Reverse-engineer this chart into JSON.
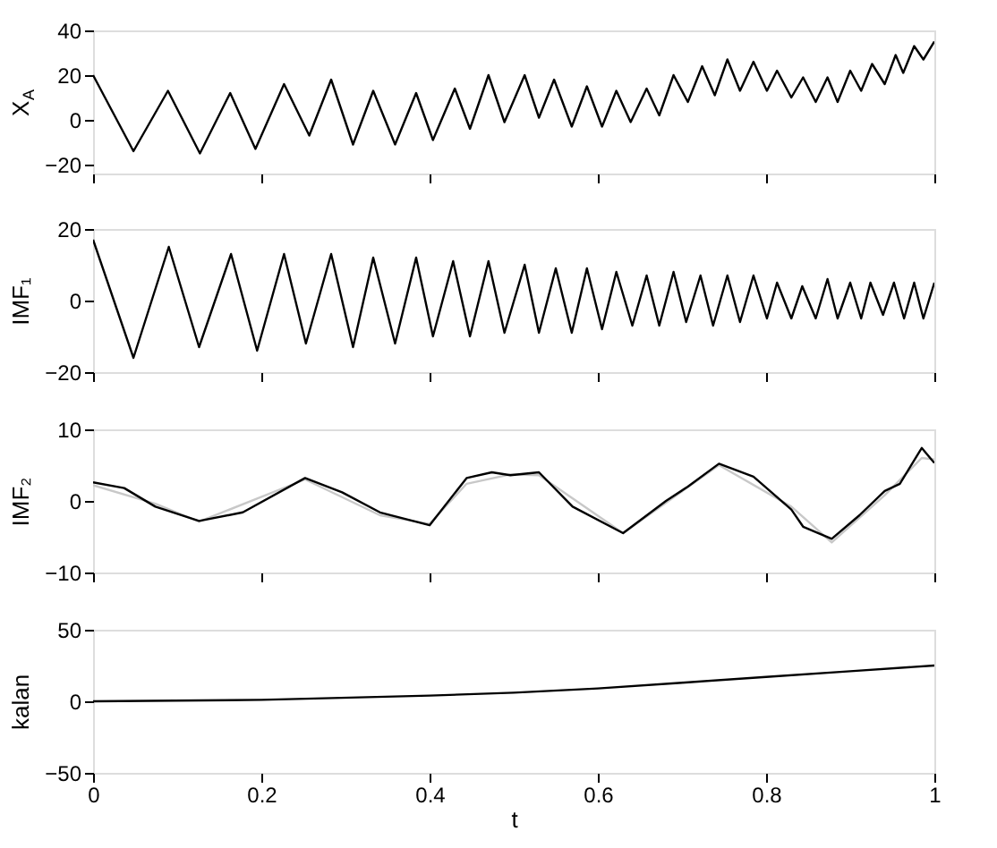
{
  "chart_data": [
    {
      "type": "line",
      "ylabel": "X$_{A}$",
      "xlim": [
        0,
        1
      ],
      "ylim": [
        -24,
        40
      ],
      "yticks": [
        -20,
        0,
        20,
        40
      ],
      "xticks": [
        {
          "value": 0,
          "label": null
        },
        {
          "value": 0.2,
          "label": null
        },
        {
          "value": 0.4,
          "label": null
        },
        {
          "value": 0.6,
          "label": null
        },
        {
          "value": 0.8,
          "label": null
        },
        {
          "value": 1,
          "label": null
        }
      ],
      "tick_labels": "y",
      "grid": false,
      "legend": false,
      "series": [
        {
          "color": "#000000",
          "x": [
            0,
            0.048,
            0.089,
            0.127,
            0.163,
            0.193,
            0.227,
            0.257,
            0.283,
            0.309,
            0.333,
            0.359,
            0.384,
            0.404,
            0.43,
            0.448,
            0.47,
            0.489,
            0.513,
            0.53,
            0.548,
            0.569,
            0.587,
            0.605,
            0.622,
            0.639,
            0.658,
            0.673,
            0.69,
            0.707,
            0.724,
            0.739,
            0.754,
            0.769,
            0.785,
            0.801,
            0.813,
            0.83,
            0.844,
            0.859,
            0.873,
            0.885,
            0.9,
            0.913,
            0.926,
            0.941,
            0.954,
            0.963,
            0.976,
            0.987,
            1
          ],
          "values": [
            20,
            -14,
            13,
            -15,
            12,
            -13,
            16,
            -7,
            18,
            -11,
            13,
            -11,
            12,
            -9,
            14,
            -4,
            20,
            -1,
            20,
            1,
            18,
            -3,
            15,
            -3,
            13,
            -1,
            14,
            2,
            20,
            8,
            24,
            11,
            27,
            13,
            26,
            13,
            22,
            10,
            19,
            8,
            19,
            8,
            22,
            13,
            25,
            16,
            29,
            21,
            33,
            27,
            35
          ]
        }
      ]
    },
    {
      "type": "line",
      "ylabel": "IMF₁",
      "xlim": [
        0,
        1
      ],
      "ylim": [
        -20,
        20
      ],
      "yticks": [
        -20,
        0,
        20
      ],
      "xticks": [
        {
          "value": 0,
          "label": null
        },
        {
          "value": 0.2,
          "label": null
        },
        {
          "value": 0.4,
          "label": null
        },
        {
          "value": 0.6,
          "label": null
        },
        {
          "value": 0.8,
          "label": null
        },
        {
          "value": 1,
          "label": null
        }
      ],
      "tick_labels": "y",
      "grid": false,
      "legend": false,
      "series": [
        {
          "color": "#000000",
          "x": [
            0,
            0.048,
            0.09,
            0.126,
            0.164,
            0.195,
            0.227,
            0.253,
            0.283,
            0.309,
            0.333,
            0.359,
            0.384,
            0.404,
            0.428,
            0.448,
            0.47,
            0.489,
            0.513,
            0.53,
            0.55,
            0.569,
            0.587,
            0.605,
            0.622,
            0.641,
            0.658,
            0.673,
            0.69,
            0.705,
            0.722,
            0.737,
            0.754,
            0.769,
            0.785,
            0.801,
            0.813,
            0.83,
            0.843,
            0.859,
            0.873,
            0.885,
            0.9,
            0.913,
            0.924,
            0.939,
            0.952,
            0.964,
            0.976,
            0.987,
            1
          ],
          "values": [
            17,
            -16,
            15,
            -13,
            13,
            -14,
            13,
            -12,
            13,
            -13,
            12,
            -12,
            12,
            -10,
            11,
            -10,
            11,
            -9,
            10,
            -9,
            9,
            -9,
            9,
            -8,
            8,
            -7,
            7,
            -7,
            8,
            -6,
            7,
            -7,
            7,
            -6,
            7,
            -5,
            5,
            -5,
            4,
            -5,
            6,
            -5,
            5,
            -5,
            5,
            -4,
            5,
            -5,
            5,
            -5,
            5
          ]
        }
      ]
    },
    {
      "type": "line",
      "ylabel": "IMF₂",
      "xlim": [
        0,
        1
      ],
      "ylim": [
        -10,
        10
      ],
      "yticks": [
        -10,
        0,
        10
      ],
      "xticks": [
        {
          "value": 0,
          "label": null
        },
        {
          "value": 0.2,
          "label": null
        },
        {
          "value": 0.4,
          "label": null
        },
        {
          "value": 0.6,
          "label": null
        },
        {
          "value": 0.8,
          "label": null
        },
        {
          "value": 1,
          "label": null
        }
      ],
      "tick_labels": "y",
      "grid": false,
      "legend": false,
      "series": [
        {
          "color": "#c8c8c8",
          "x": [
            0,
            0.074,
            0.126,
            0.252,
            0.341,
            0.4,
            0.444,
            0.496,
            0.53,
            0.63,
            0.744,
            0.83,
            0.878,
            0.941,
            0.985,
            1
          ],
          "values": [
            2.2,
            -0.4,
            -2.9,
            3,
            -2,
            -3.2,
            2.4,
            3.7,
            3.6,
            -4.5,
            5,
            -0.8,
            -5.8,
            0.8,
            6,
            5.8
          ]
        },
        {
          "color": "#000000",
          "x": [
            0,
            0.037,
            0.074,
            0.126,
            0.178,
            0.252,
            0.296,
            0.341,
            0.4,
            0.444,
            0.474,
            0.496,
            0.53,
            0.57,
            0.63,
            0.681,
            0.707,
            0.744,
            0.785,
            0.83,
            0.844,
            0.878,
            0.911,
            0.941,
            0.959,
            0.985,
            1
          ],
          "values": [
            2.6,
            1.8,
            -0.8,
            -2.8,
            -1.6,
            3.2,
            1.2,
            -1.6,
            -3.4,
            3.2,
            4,
            3.6,
            4,
            -0.8,
            -4.5,
            0,
            2,
            5.2,
            3.4,
            -1.2,
            -3.6,
            -5.3,
            -2,
            1.4,
            2.4,
            7.4,
            5.3
          ]
        }
      ]
    },
    {
      "type": "line",
      "ylabel": "kalan",
      "xlabel": "t",
      "xlim": [
        0,
        1
      ],
      "ylim": [
        -50,
        50
      ],
      "yticks": [
        -50,
        0,
        50
      ],
      "xticks": [
        0,
        0.2,
        0.4,
        0.6,
        0.8,
        1
      ],
      "grid": false,
      "legend": false,
      "series": [
        {
          "color": "#000000",
          "x": [
            0,
            0.2,
            0.4,
            0.5,
            0.6,
            0.7,
            0.8,
            0.9,
            1
          ],
          "values": [
            0,
            1,
            4,
            6,
            9,
            13,
            17,
            21,
            25
          ]
        }
      ]
    }
  ]
}
